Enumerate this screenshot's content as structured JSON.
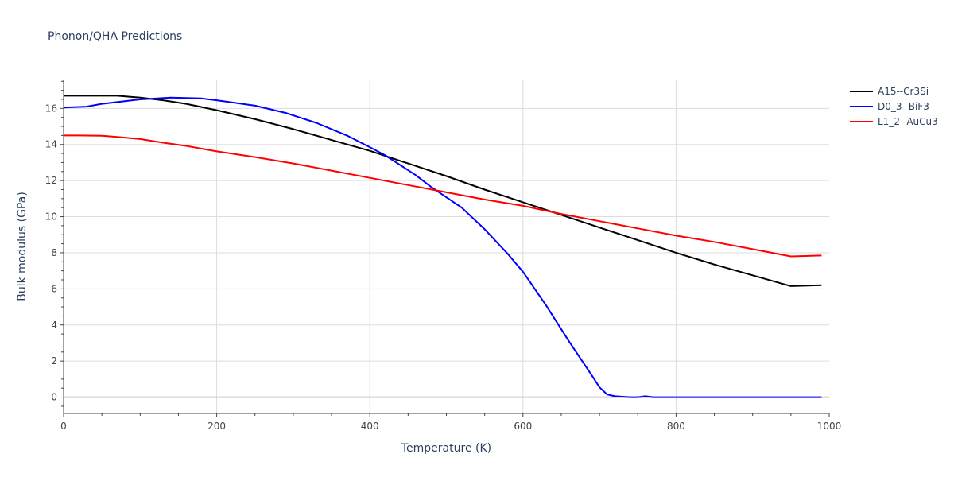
{
  "chart_data": {
    "type": "line",
    "title": "Phonon/QHA Predictions",
    "xlabel": "Temperature (K)",
    "ylabel": "Bulk modulus (GPa)",
    "xlim": [
      0,
      1000
    ],
    "ylim": [
      -0.9,
      17.6
    ],
    "xticks": [
      0,
      200,
      400,
      600,
      800,
      1000
    ],
    "yticks": [
      0,
      2,
      4,
      6,
      8,
      10,
      12,
      14,
      16
    ],
    "grid": true,
    "legend_position": "top-right",
    "series": [
      {
        "name": "A15--Cr3Si",
        "color": "#000000",
        "x": [
          0,
          20,
          40,
          70,
          100,
          130,
          160,
          200,
          250,
          300,
          350,
          400,
          450,
          500,
          550,
          600,
          650,
          700,
          750,
          800,
          850,
          900,
          950,
          990
        ],
        "y": [
          16.7,
          16.7,
          16.7,
          16.7,
          16.6,
          16.45,
          16.25,
          15.9,
          15.4,
          14.85,
          14.25,
          13.65,
          12.95,
          12.25,
          11.5,
          10.8,
          10.1,
          9.4,
          8.7,
          8.0,
          7.35,
          6.75,
          6.15,
          6.2
        ]
      },
      {
        "name": "D0_3--BiF3",
        "color": "#0000ff",
        "x": [
          0,
          30,
          50,
          80,
          100,
          140,
          180,
          200,
          250,
          290,
          330,
          370,
          400,
          420,
          460,
          480,
          520,
          550,
          580,
          600,
          630,
          660,
          690,
          700,
          710,
          720,
          740,
          750,
          760,
          770,
          800,
          850,
          900,
          950,
          990
        ],
        "y": [
          16.05,
          16.1,
          16.25,
          16.4,
          16.5,
          16.6,
          16.55,
          16.45,
          16.15,
          15.75,
          15.2,
          14.5,
          13.85,
          13.4,
          12.3,
          11.65,
          10.5,
          9.3,
          7.95,
          6.95,
          5.1,
          3.1,
          1.2,
          0.55,
          0.15,
          0.05,
          0.0,
          0.0,
          0.05,
          0.0,
          0.0,
          0.0,
          0.0,
          0.0,
          0.0
        ]
      },
      {
        "name": "L1_2--AuCu3",
        "color": "#ff0000",
        "x": [
          0,
          20,
          50,
          70,
          100,
          130,
          160,
          200,
          250,
          300,
          350,
          400,
          450,
          500,
          550,
          600,
          650,
          700,
          750,
          800,
          850,
          900,
          950,
          990
        ],
        "y": [
          14.5,
          14.5,
          14.48,
          14.42,
          14.3,
          14.1,
          13.92,
          13.62,
          13.3,
          12.95,
          12.55,
          12.15,
          11.75,
          11.35,
          10.95,
          10.6,
          10.15,
          9.75,
          9.35,
          8.95,
          8.6,
          8.2,
          7.8,
          7.85
        ]
      }
    ]
  }
}
